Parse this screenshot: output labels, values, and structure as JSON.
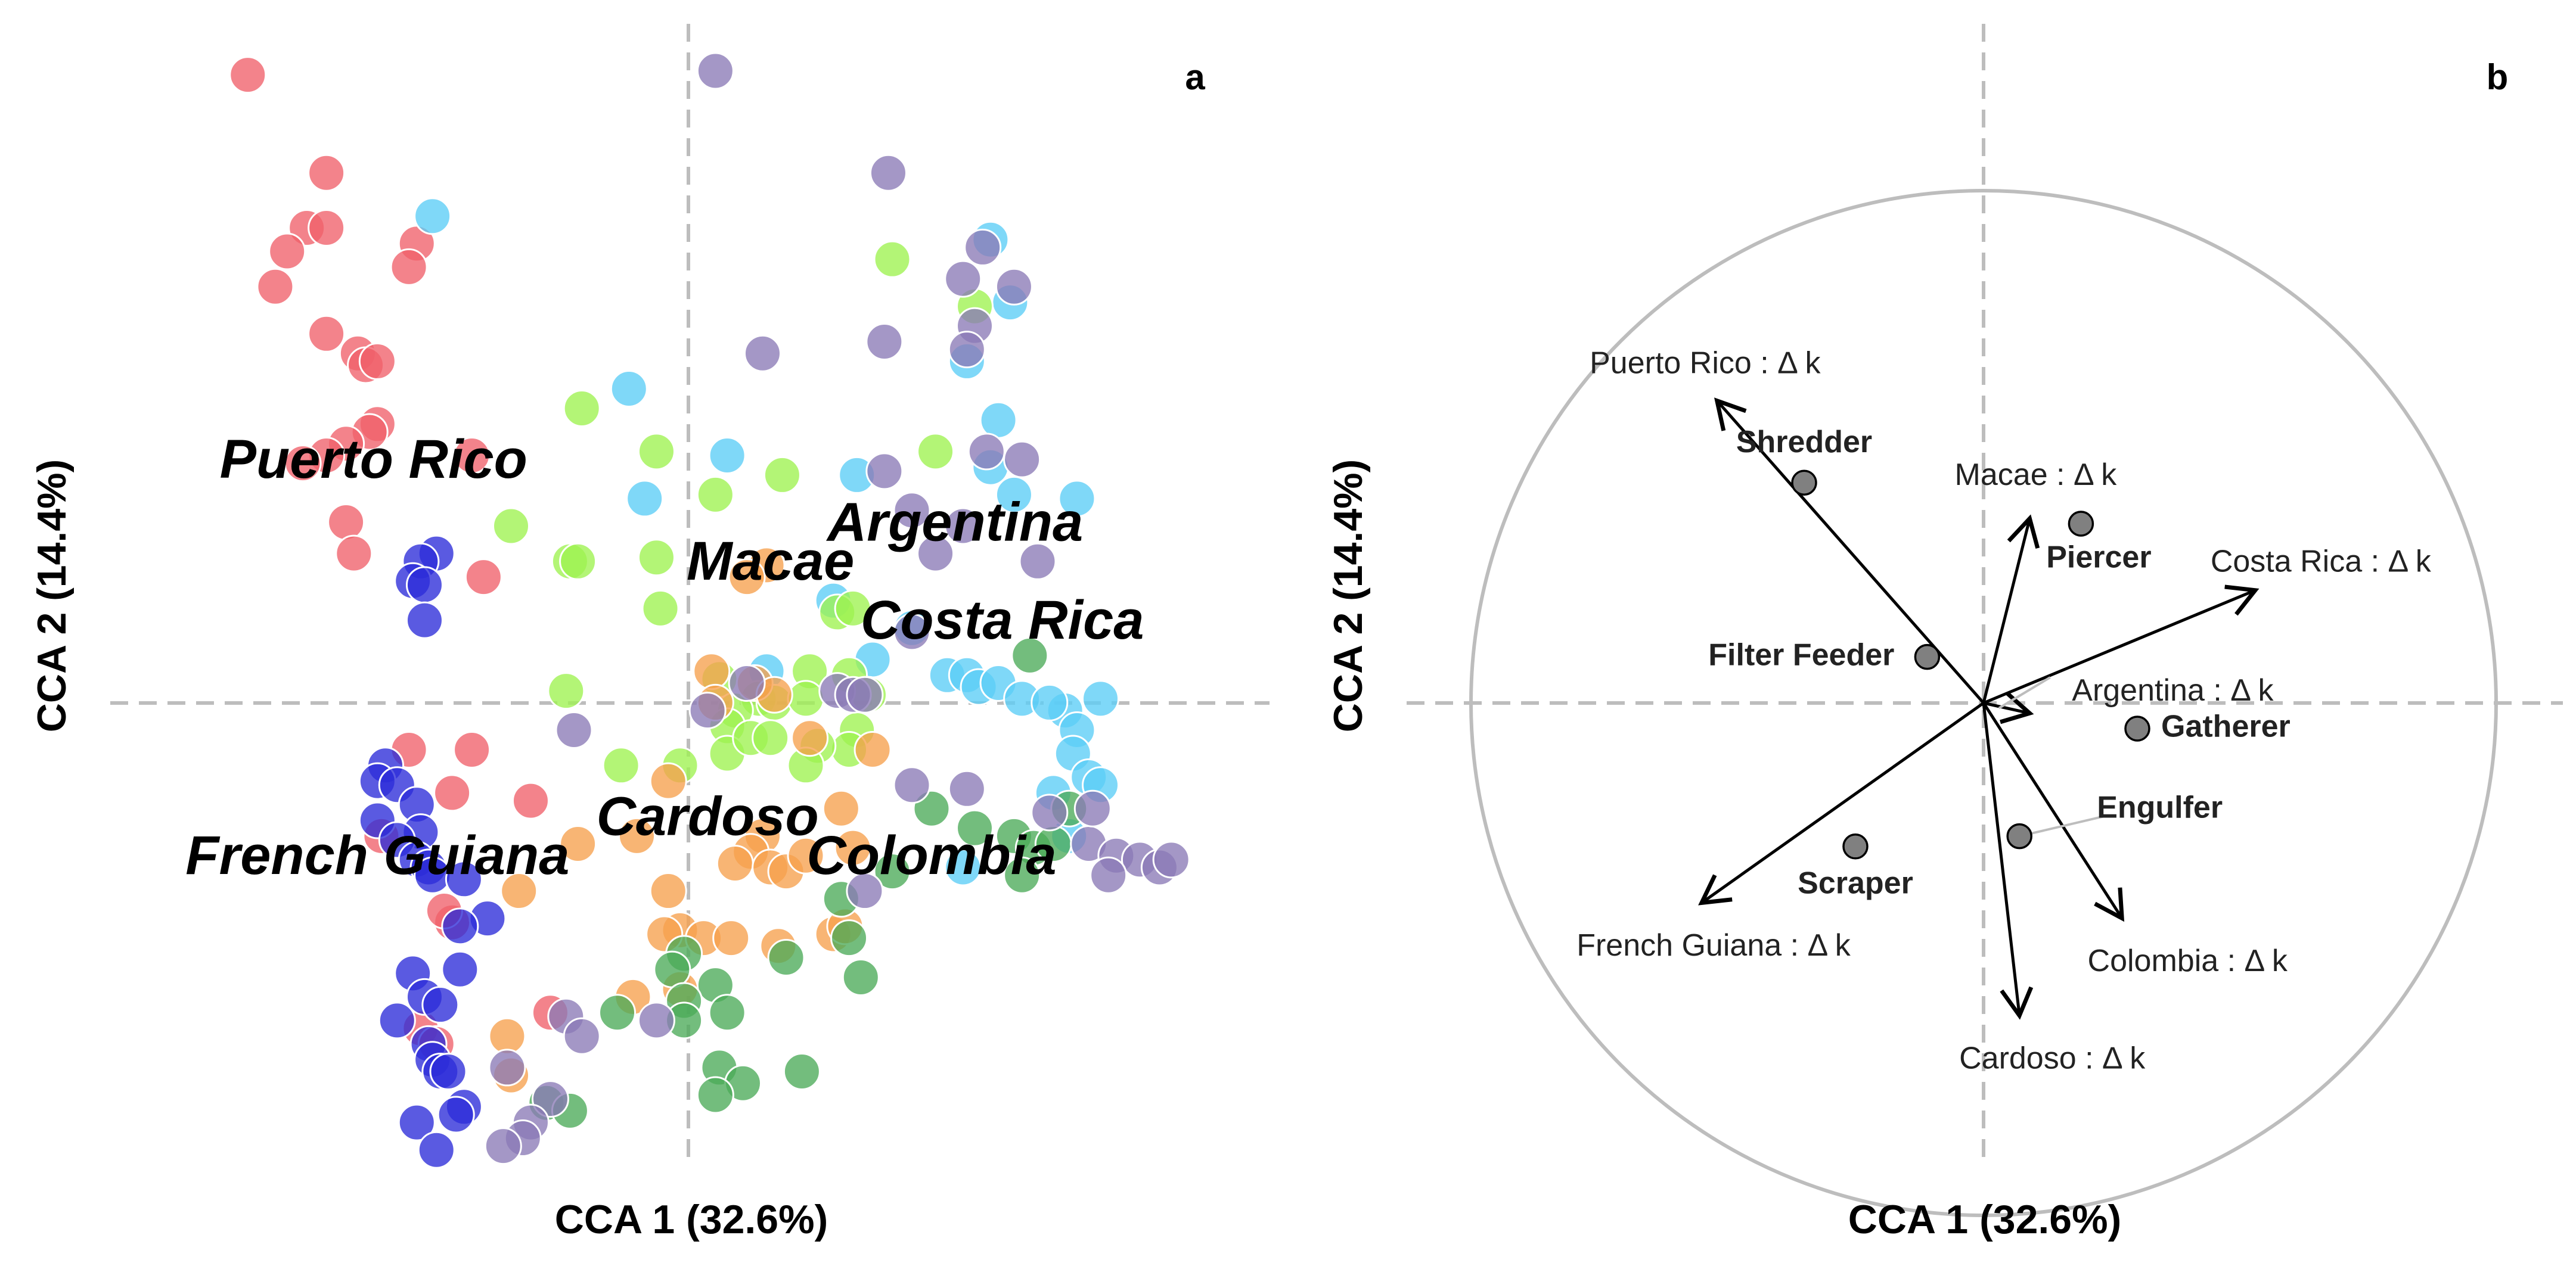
{
  "chart_data": [
    {
      "type": "scatter",
      "panel": "a",
      "xlabel": "CCA 1 (32.6%)",
      "ylabel": "CCA 2 (14.4%)",
      "xlim": [
        -1.6,
        1.35
      ],
      "ylim": [
        -1.2,
        1.7
      ],
      "grid": false,
      "reference_lines": {
        "x": 0,
        "y": 0
      },
      "site_labels": [
        {
          "text": "Puerto Rico",
          "x": -0.93,
          "y": 0.58
        },
        {
          "text": "Argentina",
          "x": 0.55,
          "y": 0.42
        },
        {
          "text": "Macae",
          "x": 0.08,
          "y": 0.32
        },
        {
          "text": "Costa Rica",
          "x": 0.67,
          "y": 0.17
        },
        {
          "text": "Cardoso",
          "x": -0.08,
          "y": -0.33
        },
        {
          "text": "French Guiana",
          "x": -0.92,
          "y": -0.43
        },
        {
          "text": "Colombia",
          "x": 0.49,
          "y": -0.43
        }
      ],
      "series": [
        {
          "color": "#f0606a",
          "points": [
            [
              -1.25,
              1.57
            ],
            [
              -1.05,
              1.32
            ],
            [
              -1.1,
              1.18
            ],
            [
              -1.05,
              1.18
            ],
            [
              -1.15,
              1.12
            ],
            [
              -1.18,
              1.03
            ],
            [
              -0.82,
              1.14
            ],
            [
              -0.84,
              1.08
            ],
            [
              -1.05,
              0.91
            ],
            [
              -0.97,
              0.86
            ],
            [
              -0.95,
              0.83
            ],
            [
              -0.92,
              0.84
            ],
            [
              -0.92,
              0.68
            ],
            [
              -0.94,
              0.66
            ],
            [
              -1.0,
              0.63
            ],
            [
              -1.05,
              0.6
            ],
            [
              -1.11,
              0.58
            ],
            [
              -0.68,
              0.6
            ],
            [
              -1.0,
              0.43
            ],
            [
              -0.98,
              0.35
            ],
            [
              -0.65,
              0.29
            ],
            [
              -0.84,
              -0.15
            ],
            [
              -0.68,
              -0.15
            ],
            [
              -0.53,
              -0.28
            ],
            [
              -0.73,
              -0.26
            ],
            [
              -0.91,
              -0.37
            ],
            [
              -0.73,
              -0.59
            ],
            [
              -0.75,
              -0.56
            ],
            [
              -0.48,
              -0.82
            ],
            [
              -0.81,
              -0.86
            ],
            [
              -0.77,
              -0.9
            ]
          ]
        },
        {
          "color": "#5bcdf6",
          "points": [
            [
              -0.78,
              1.21
            ],
            [
              0.64,
              1.15
            ],
            [
              0.69,
              0.99
            ],
            [
              0.58,
              0.84
            ],
            [
              0.66,
              0.69
            ],
            [
              -0.28,
              0.77
            ],
            [
              0.64,
              0.57
            ],
            [
              0.7,
              0.5
            ],
            [
              0.86,
              0.49
            ],
            [
              -0.03,
              0.6
            ],
            [
              0.3,
              0.55
            ],
            [
              -0.24,
              0.49
            ],
            [
              0.24,
              0.23
            ],
            [
              0.44,
              0.16
            ],
            [
              0.34,
              0.08
            ],
            [
              0.07,
              0.05
            ],
            [
              0.53,
              0.04
            ],
            [
              0.58,
              0.04
            ],
            [
              0.61,
              0.01
            ],
            [
              0.66,
              0.02
            ],
            [
              0.72,
              -0.02
            ],
            [
              0.83,
              -0.05
            ],
            [
              0.79,
              -0.03
            ],
            [
              0.92,
              -0.02
            ],
            [
              0.86,
              -0.1
            ],
            [
              0.85,
              -0.16
            ],
            [
              0.89,
              -0.22
            ],
            [
              0.92,
              -0.24
            ],
            [
              0.8,
              -0.26
            ],
            [
              0.84,
              -0.37
            ],
            [
              0.57,
              -0.45
            ]
          ]
        },
        {
          "color": "#9df250",
          "points": [
            [
              0.39,
              1.1
            ],
            [
              0.6,
              0.98
            ],
            [
              0.5,
              0.61
            ],
            [
              -0.4,
              0.72
            ],
            [
              -0.21,
              0.61
            ],
            [
              0.11,
              0.55
            ],
            [
              -0.06,
              0.5
            ],
            [
              -0.58,
              0.42
            ],
            [
              -0.43,
              0.33
            ],
            [
              -0.41,
              0.33
            ],
            [
              -0.21,
              0.34
            ],
            [
              -0.2,
              0.21
            ],
            [
              0.25,
              0.2
            ],
            [
              0.29,
              0.21
            ],
            [
              -0.44,
              0.0
            ],
            [
              0.18,
              0.05
            ],
            [
              0.28,
              0.04
            ],
            [
              -0.05,
              0.03
            ],
            [
              0.05,
              -0.02
            ],
            [
              0.09,
              -0.03
            ],
            [
              0.17,
              -0.02
            ],
            [
              0.33,
              -0.01
            ],
            [
              -0.01,
              -0.05
            ],
            [
              -0.03,
              -0.09
            ],
            [
              0.3,
              -0.1
            ],
            [
              0.28,
              -0.15
            ],
            [
              -0.03,
              -0.16
            ],
            [
              0.03,
              -0.12
            ],
            [
              0.08,
              -0.12
            ],
            [
              0.2,
              -0.14
            ],
            [
              0.17,
              -0.19
            ],
            [
              -0.15,
              -0.19
            ],
            [
              -0.3,
              -0.19
            ]
          ]
        },
        {
          "color": "#f6a04d",
          "points": [
            [
              0.07,
              0.32
            ],
            [
              0.02,
              0.29
            ],
            [
              -0.07,
              0.05
            ],
            [
              0.04,
              0.02
            ],
            [
              0.09,
              -0.01
            ],
            [
              -0.06,
              -0.03
            ],
            [
              0.18,
              -0.12
            ],
            [
              0.34,
              -0.15
            ],
            [
              -0.18,
              -0.23
            ],
            [
              -0.26,
              -0.37
            ],
            [
              0.26,
              -0.3
            ],
            [
              0.29,
              -0.4
            ],
            [
              0.06,
              -0.37
            ],
            [
              0.03,
              -0.41
            ],
            [
              -0.01,
              -0.44
            ],
            [
              0.08,
              -0.45
            ],
            [
              0.12,
              -0.46
            ],
            [
              0.17,
              -0.42
            ],
            [
              -0.18,
              -0.51
            ],
            [
              -0.15,
              -0.61
            ],
            [
              -0.19,
              -0.62
            ],
            [
              -0.09,
              -0.63
            ],
            [
              -0.02,
              -0.63
            ],
            [
              0.24,
              -0.62
            ],
            [
              0.27,
              -0.6
            ],
            [
              0.1,
              -0.65
            ],
            [
              -0.41,
              -0.39
            ],
            [
              -0.56,
              -0.51
            ],
            [
              -0.15,
              -0.76
            ],
            [
              -0.27,
              -0.78
            ],
            [
              -0.59,
              -0.88
            ],
            [
              -0.58,
              -0.98
            ]
          ]
        },
        {
          "color": "#4caa58",
          "points": [
            [
              0.74,
              0.09
            ],
            [
              0.49,
              -0.3
            ],
            [
              0.39,
              -0.46
            ],
            [
              0.6,
              -0.35
            ],
            [
              0.7,
              -0.37
            ],
            [
              0.75,
              -0.4
            ],
            [
              0.8,
              -0.39
            ],
            [
              0.84,
              -0.3
            ],
            [
              0.72,
              -0.47
            ],
            [
              0.26,
              -0.53
            ],
            [
              0.28,
              -0.63
            ],
            [
              0.31,
              -0.73
            ],
            [
              0.12,
              -0.68
            ],
            [
              -0.14,
              -0.67
            ],
            [
              -0.17,
              -0.71
            ],
            [
              -0.06,
              -0.75
            ],
            [
              -0.14,
              -0.79
            ],
            [
              -0.03,
              -0.82
            ],
            [
              -0.31,
              -0.82
            ],
            [
              -0.14,
              -0.84
            ],
            [
              -0.05,
              -0.96
            ],
            [
              0.16,
              -0.97
            ],
            [
              0.01,
              -1.0
            ],
            [
              -0.49,
              -1.05
            ],
            [
              -0.06,
              -1.03
            ],
            [
              -0.43,
              -1.07
            ]
          ]
        },
        {
          "color": "#2b2bd8",
          "points": [
            [
              -0.77,
              0.35
            ],
            [
              -0.81,
              0.33
            ],
            [
              -0.83,
              0.28
            ],
            [
              -0.8,
              0.27
            ],
            [
              -0.8,
              0.18
            ],
            [
              -0.9,
              -0.19
            ],
            [
              -0.92,
              -0.23
            ],
            [
              -0.87,
              -0.24
            ],
            [
              -0.82,
              -0.29
            ],
            [
              -0.92,
              -0.33
            ],
            [
              -0.81,
              -0.36
            ],
            [
              -0.87,
              -0.38
            ],
            [
              -0.82,
              -0.43
            ],
            [
              -0.79,
              -0.45
            ],
            [
              -0.78,
              -0.47
            ],
            [
              -0.7,
              -0.48
            ],
            [
              -0.64,
              -0.58
            ],
            [
              -0.71,
              -0.6
            ],
            [
              -0.71,
              -0.71
            ],
            [
              -0.83,
              -0.72
            ],
            [
              -0.8,
              -0.78
            ],
            [
              -0.76,
              -0.8
            ],
            [
              -0.87,
              -0.84
            ],
            [
              -0.79,
              -0.9
            ],
            [
              -0.78,
              -0.94
            ],
            [
              -0.76,
              -0.97
            ],
            [
              -0.74,
              -0.97
            ],
            [
              -0.82,
              -1.1
            ],
            [
              -0.7,
              -1.06
            ],
            [
              -0.72,
              -1.08
            ],
            [
              -0.77,
              -1.17
            ]
          ]
        },
        {
          "color": "#8a7ab6",
          "points": [
            [
              -0.06,
              1.58
            ],
            [
              0.38,
              1.32
            ],
            [
              0.62,
              1.13
            ],
            [
              0.57,
              1.05
            ],
            [
              0.7,
              1.03
            ],
            [
              0.6,
              0.93
            ],
            [
              0.37,
              0.89
            ],
            [
              0.06,
              0.86
            ],
            [
              0.58,
              0.87
            ],
            [
              0.37,
              0.56
            ],
            [
              0.63,
              0.61
            ],
            [
              0.72,
              0.59
            ],
            [
              0.44,
              0.46
            ],
            [
              0.57,
              0.42
            ],
            [
              0.5,
              0.35
            ],
            [
              0.76,
              0.33
            ],
            [
              0.44,
              0.15
            ],
            [
              0.02,
              0.02
            ],
            [
              0.25,
              0.0
            ],
            [
              0.29,
              -0.01
            ],
            [
              0.32,
              -0.01
            ],
            [
              -0.08,
              -0.05
            ],
            [
              -0.42,
              -0.1
            ],
            [
              0.44,
              -0.24
            ],
            [
              0.58,
              -0.25
            ],
            [
              0.79,
              -0.31
            ],
            [
              0.89,
              -0.39
            ],
            [
              0.96,
              -0.42
            ],
            [
              1.02,
              -0.43
            ],
            [
              1.07,
              -0.45
            ],
            [
              1.1,
              -0.43
            ],
            [
              0.9,
              -0.3
            ],
            [
              0.94,
              -0.47
            ],
            [
              -0.44,
              -0.83
            ],
            [
              -0.21,
              -0.84
            ],
            [
              -0.4,
              -0.88
            ],
            [
              -0.59,
              -0.96
            ],
            [
              -0.48,
              -1.04
            ],
            [
              -0.53,
              -1.1
            ],
            [
              -0.55,
              -1.14
            ],
            [
              -0.6,
              -1.16
            ],
            [
              0.32,
              -0.51
            ]
          ]
        }
      ]
    },
    {
      "type": "biplot",
      "panel": "b",
      "xlabel": "CCA 1 (32.6%)",
      "ylabel": "CCA 2 (14.4%)",
      "xlim": [
        -1.15,
        1.25
      ],
      "ylim": [
        -1.2,
        1.2
      ],
      "reference_lines": {
        "x": 0,
        "y": 0
      },
      "unit_circle": true,
      "vectors": [
        {
          "label": "Puerto Rico : Δ k",
          "x": -0.52,
          "y": 0.59
        },
        {
          "label": "Macae : Δ k",
          "x": 0.09,
          "y": 0.36
        },
        {
          "label": "Costa Rica : Δ k",
          "x": 0.53,
          "y": 0.22
        },
        {
          "label": "Argentina : Δ k",
          "x": 0.09,
          "y": -0.02
        },
        {
          "label": "Colombia : Δ k",
          "x": 0.27,
          "y": -0.42
        },
        {
          "label": "Cardoso : Δ k",
          "x": 0.07,
          "y": -0.61
        },
        {
          "label": "French Guiana : Δ k",
          "x": -0.55,
          "y": -0.39
        }
      ],
      "points": [
        {
          "label": "Shredder",
          "x": -0.35,
          "y": 0.43
        },
        {
          "label": "Piercer",
          "x": 0.19,
          "y": 0.35
        },
        {
          "label": "Filter Feeder",
          "x": -0.11,
          "y": 0.09
        },
        {
          "label": "Gatherer",
          "x": 0.3,
          "y": -0.05
        },
        {
          "label": "Engulfer",
          "x": 0.07,
          "y": -0.26
        },
        {
          "label": "Scraper",
          "x": -0.25,
          "y": -0.28
        }
      ],
      "point_color": "#808080"
    }
  ],
  "panels": {
    "a": {
      "letter": "a",
      "xlabel": "CCA 1 (32.6%)",
      "ylabel": "CCA 2 (14.4%)"
    },
    "b": {
      "letter": "b",
      "xlabel": "CCA 1 (32.6%)",
      "ylabel": "CCA 2 (14.4%)"
    }
  }
}
